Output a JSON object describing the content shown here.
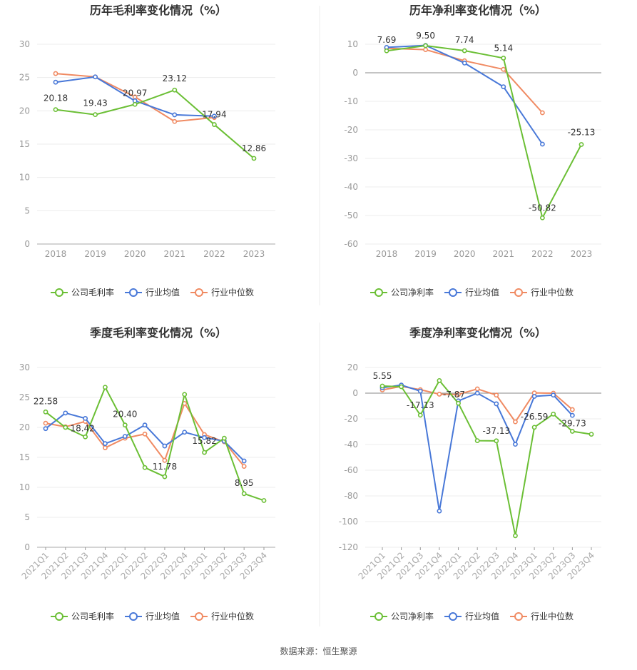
{
  "source_note": "数据来源：恒生聚源",
  "chart_data": [
    {
      "type": "line",
      "title": "历年毛利率变化情况（%）",
      "categories": [
        "2018",
        "2019",
        "2020",
        "2021",
        "2022",
        "2023"
      ],
      "ylim": [
        0,
        30
      ],
      "yticks": [
        0,
        5,
        10,
        15,
        20,
        25,
        30
      ],
      "grid": true,
      "legend": "bottom",
      "series": [
        {
          "name": "公司毛利率",
          "color": "#6bbf35",
          "values": [
            20.18,
            19.43,
            20.97,
            23.12,
            17.94,
            12.86
          ],
          "labels": [
            "20.18",
            "19.43",
            "20.97",
            "23.12",
            "17.94",
            "12.86"
          ]
        },
        {
          "name": "行业均值",
          "color": "#4878d8",
          "values": [
            24.3,
            25.1,
            21.5,
            19.4,
            19.2,
            null
          ]
        },
        {
          "name": "行业中位数",
          "color": "#f08a62",
          "values": [
            25.6,
            25.1,
            22.1,
            18.4,
            19.0,
            null
          ]
        }
      ]
    },
    {
      "type": "line",
      "title": "历年净利率变化情况（%）",
      "categories": [
        "2018",
        "2019",
        "2020",
        "2021",
        "2022",
        "2023"
      ],
      "ylim": [
        -60,
        10
      ],
      "yticks": [
        -60,
        -50,
        -40,
        -30,
        -20,
        -10,
        0,
        10
      ],
      "grid": true,
      "legend": "bottom",
      "series": [
        {
          "name": "公司净利率",
          "color": "#6bbf35",
          "values": [
            7.69,
            9.5,
            7.74,
            5.14,
            -50.82,
            -25.13
          ],
          "labels": [
            "7.69",
            "9.50",
            "7.74",
            "5.14",
            "-50.82",
            "-25.13"
          ]
        },
        {
          "name": "行业均值",
          "color": "#4878d8",
          "values": [
            8.9,
            9.6,
            3.4,
            -4.9,
            -25.0,
            null
          ]
        },
        {
          "name": "行业中位数",
          "color": "#f08a62",
          "values": [
            8.6,
            8.1,
            4.2,
            1.2,
            -14.0,
            null
          ]
        }
      ]
    },
    {
      "type": "line",
      "title": "季度毛利率变化情况（%）",
      "categories": [
        "2021Q1",
        "2021Q2",
        "2021Q3",
        "2021Q4",
        "2022Q1",
        "2022Q2",
        "2022Q3",
        "2022Q4",
        "2023Q1",
        "2023Q2",
        "2023Q3",
        "2023Q4"
      ],
      "ylim": [
        0,
        30
      ],
      "yticks": [
        0,
        5,
        10,
        15,
        20,
        25,
        30
      ],
      "grid": true,
      "legend": "bottom",
      "series": [
        {
          "name": "公司毛利率",
          "color": "#6bbf35",
          "values": [
            22.58,
            20.0,
            18.42,
            26.7,
            20.4,
            13.3,
            11.78,
            25.5,
            15.82,
            18.2,
            8.95,
            7.8
          ],
          "labels": [
            "22.58",
            null,
            "18.42",
            null,
            "20.40",
            null,
            "11.78",
            null,
            "15.82",
            null,
            "8.95",
            null
          ]
        },
        {
          "name": "行业均值",
          "color": "#4878d8",
          "values": [
            19.8,
            22.4,
            21.5,
            17.3,
            18.5,
            20.4,
            16.9,
            19.2,
            18.3,
            17.7,
            14.4,
            null
          ]
        },
        {
          "name": "行业中位数",
          "color": "#f08a62",
          "values": [
            20.7,
            20.1,
            21.0,
            16.6,
            18.2,
            18.9,
            14.5,
            24.0,
            18.8,
            17.6,
            13.5,
            null
          ]
        }
      ]
    },
    {
      "type": "line",
      "title": "季度净利率变化情况（%）",
      "categories": [
        "2021Q1",
        "2021Q2",
        "2021Q3",
        "2021Q4",
        "2022Q1",
        "2022Q2",
        "2022Q3",
        "2022Q4",
        "2023Q1",
        "2023Q2",
        "2023Q3",
        "2023Q4"
      ],
      "ylim": [
        -120,
        20
      ],
      "yticks": [
        -120,
        -100,
        -80,
        -60,
        -40,
        -20,
        0,
        20
      ],
      "grid": true,
      "legend": "bottom",
      "series": [
        {
          "name": "公司净利率",
          "color": "#6bbf35",
          "values": [
            5.55,
            5.0,
            -17.13,
            9.8,
            -7.87,
            -37.0,
            -37.13,
            -111.0,
            -26.59,
            -16.3,
            -29.73,
            -32.0
          ],
          "labels": [
            "5.55",
            null,
            "-17.13",
            null,
            "-7.87",
            null,
            "-37.13",
            null,
            "-26.59",
            null,
            "-29.73",
            null
          ]
        },
        {
          "name": "行业均值",
          "color": "#4878d8",
          "values": [
            4.2,
            6.3,
            1.6,
            -91.8,
            -6.0,
            0.0,
            -8.3,
            -39.8,
            -2.5,
            -1.5,
            -17.3,
            null
          ]
        },
        {
          "name": "行业中位数",
          "color": "#f08a62",
          "values": [
            2.5,
            5.3,
            2.7,
            -0.8,
            -1.0,
            3.3,
            -1.5,
            -22.3,
            0.2,
            0.0,
            -12.8,
            null
          ]
        }
      ]
    }
  ]
}
